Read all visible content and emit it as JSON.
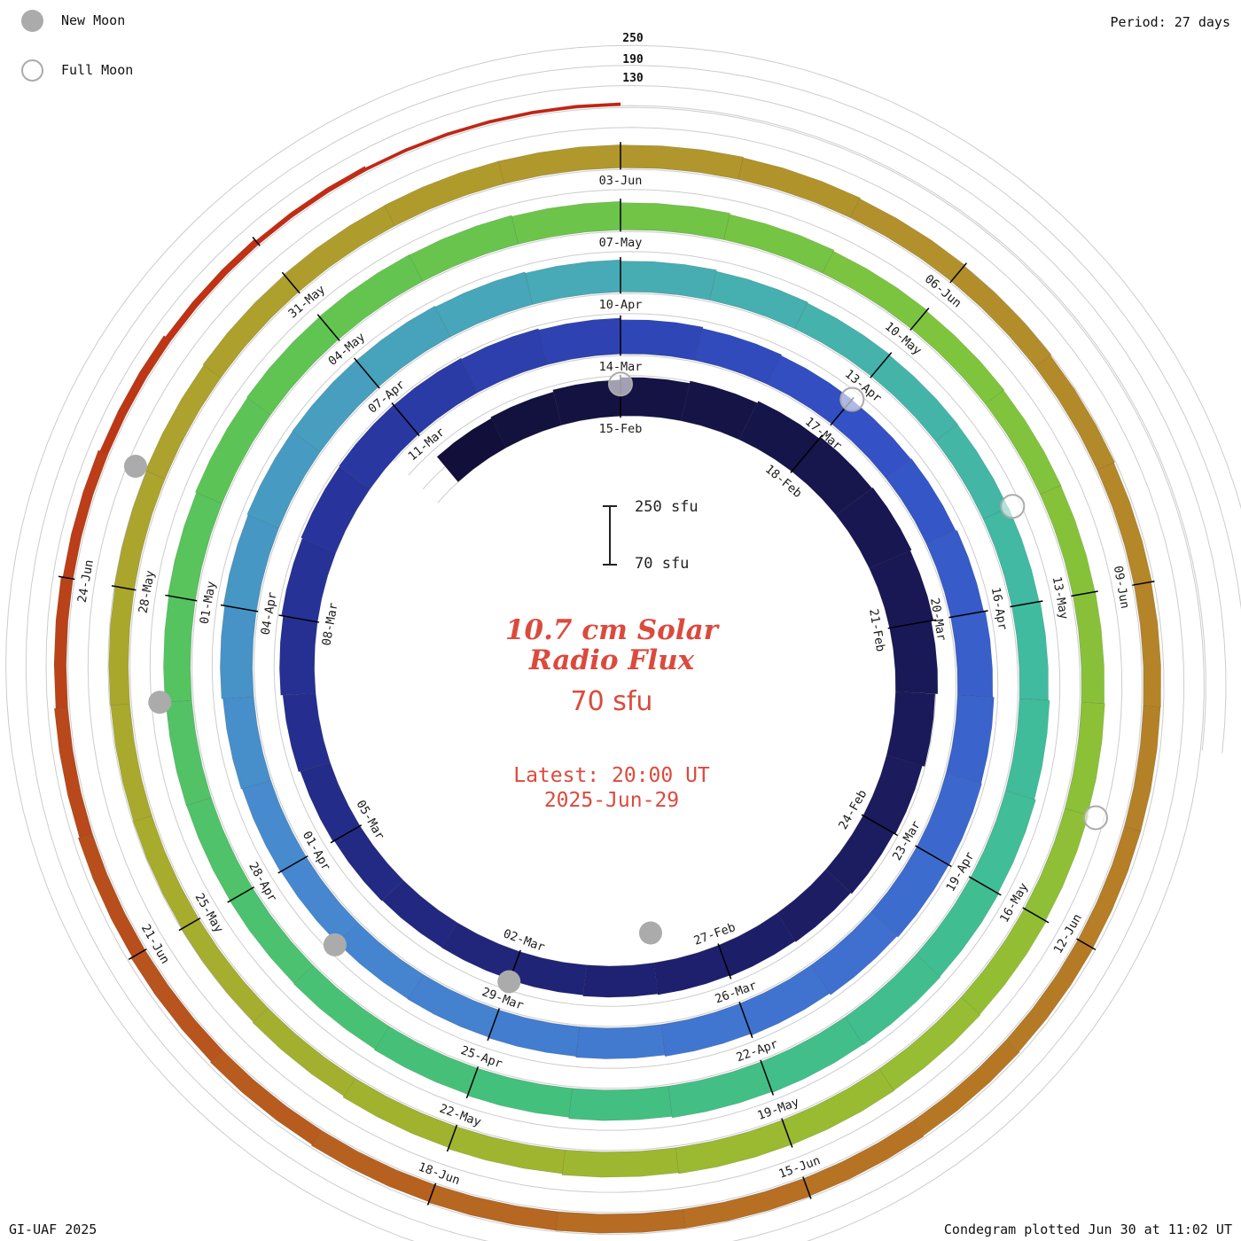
{
  "header": {
    "period_label": "Period: 27 days"
  },
  "legend": {
    "new_moon": "New Moon",
    "full_moon": "Full Moon"
  },
  "footer": {
    "left": "GI-UAF 2025",
    "right": "Condegram plotted Jun 30 at 11:02 UT"
  },
  "center": {
    "title_line1": "10.7 cm Solar",
    "title_line2": "Radio Flux",
    "current_value": "70 sfu",
    "latest_line1": "Latest: 20:00 UT",
    "latest_line2": "2025-Jun-29"
  },
  "scale_bar": {
    "top": "250 sfu",
    "bottom": "70 sfu"
  },
  "radial_scale": {
    "labels": [
      "250",
      "190",
      "130"
    ]
  },
  "colors": {
    "text_red": "#dc4a3d",
    "label_dark": "#1a1a1a",
    "grid_gray": "#cccccc",
    "moon_gray": "#ababab",
    "tick_black": "#000000"
  },
  "chart_data": {
    "type": "spiral-bar-condegram",
    "title": "10.7 cm Solar Radio Flux",
    "units": "sfu",
    "period_days": 27,
    "start_date": "2025-02-12",
    "end_date": "2025-06-29",
    "flux_scale_min": 70,
    "flux_scale_max": 250,
    "radial_gridlines_sfu": [
      130,
      190,
      250
    ],
    "latest": {
      "value_sfu": 70,
      "time_ut": "20:00 UT",
      "date": "2025-Jun-29"
    },
    "daily_flux_sfu": [
      168,
      172,
      178,
      185,
      192,
      198,
      204,
      207,
      203,
      196,
      188,
      181,
      176,
      172,
      169,
      166,
      163,
      160,
      158,
      157,
      159,
      163,
      168,
      174,
      179,
      183,
      185,
      184,
      181,
      177,
      172,
      168,
      165,
      164,
      166,
      170,
      175,
      179,
      181,
      180,
      176,
      171,
      166,
      162,
      159,
      157,
      156,
      157,
      159,
      162,
      166,
      170,
      173,
      174,
      173,
      170,
      166,
      162,
      158,
      155,
      153,
      152,
      153,
      156,
      160,
      164,
      167,
      169,
      168,
      165,
      161,
      157,
      153,
      150,
      148,
      147,
      148,
      150,
      153,
      156,
      158,
      159,
      158,
      155,
      151,
      147,
      143,
      140,
      138,
      137,
      138,
      140,
      143,
      146,
      148,
      149,
      148,
      145,
      141,
      137,
      133,
      130,
      128,
      127,
      128,
      130,
      133,
      136,
      138,
      139,
      139,
      138,
      136,
      133,
      130,
      127,
      124,
      122,
      121,
      121,
      122,
      124,
      126,
      127,
      127,
      126,
      124,
      121,
      118,
      114,
      110,
      106,
      101,
      96,
      90,
      84,
      77,
      70
    ],
    "label_days": [
      3,
      6,
      9,
      12,
      15,
      18,
      21,
      24,
      27,
      30,
      33,
      36,
      39,
      42,
      45,
      48,
      51,
      54,
      57,
      60,
      63,
      66,
      69,
      72,
      75,
      78,
      81,
      84,
      87,
      90,
      93,
      96,
      99,
      102,
      105,
      108,
      111,
      114,
      117,
      120,
      123,
      126,
      129,
      132
    ],
    "label_texts": [
      "15-Feb",
      "18-Feb",
      "21-Feb",
      "24-Feb",
      "27-Feb",
      "02-Mar",
      "05-Mar",
      "08-Mar",
      "11-Mar",
      "14-Mar",
      "17-Mar",
      "20-Mar",
      "23-Mar",
      "26-Mar",
      "29-Mar",
      "01-Apr",
      "04-Apr",
      "07-Apr",
      "10-Apr",
      "13-Apr",
      "16-Apr",
      "19-Apr",
      "22-Apr",
      "25-Apr",
      "28-Apr",
      "01-May",
      "04-May",
      "07-May",
      "10-May",
      "13-May",
      "16-May",
      "19-May",
      "22-May",
      "25-May",
      "28-May",
      "31-May",
      "03-Jun",
      "06-Jun",
      "09-Jun",
      "12-Jun",
      "15-Jun",
      "18-Jun",
      "21-Jun",
      "24-Jun"
    ],
    "colormap": [
      {
        "day": 0,
        "color": "#120f38"
      },
      {
        "day": 14,
        "color": "#1d1d66"
      },
      {
        "day": 26,
        "color": "#28359e"
      },
      {
        "day": 33,
        "color": "#3350c4"
      },
      {
        "day": 40,
        "color": "#3e6ed0"
      },
      {
        "day": 48,
        "color": "#4789cf"
      },
      {
        "day": 57,
        "color": "#47acb4"
      },
      {
        "day": 64,
        "color": "#40bc9d"
      },
      {
        "day": 72,
        "color": "#44c07b"
      },
      {
        "day": 80,
        "color": "#5ec455"
      },
      {
        "day": 87,
        "color": "#7cc43e"
      },
      {
        "day": 95,
        "color": "#98bc32"
      },
      {
        "day": 103,
        "color": "#a8ab2d"
      },
      {
        "day": 111,
        "color": "#b0972c"
      },
      {
        "day": 118,
        "color": "#b58328"
      },
      {
        "day": 125,
        "color": "#b66a22"
      },
      {
        "day": 131,
        "color": "#b94519"
      },
      {
        "day": 137,
        "color": "#c62310"
      }
    ],
    "moons": {
      "new_moon_days": [
        16,
        45,
        74,
        104,
        133
      ],
      "new_moon_dates": [
        "2025-02-28",
        "2025-03-29",
        "2025-04-27",
        "2025-05-27",
        "2025-06-25"
      ],
      "full_moon_days": [
        30,
        60,
        89,
        119
      ],
      "full_moon_dates": [
        "2025-03-14",
        "2025-04-13",
        "2025-05-12",
        "2025-06-11"
      ]
    }
  }
}
